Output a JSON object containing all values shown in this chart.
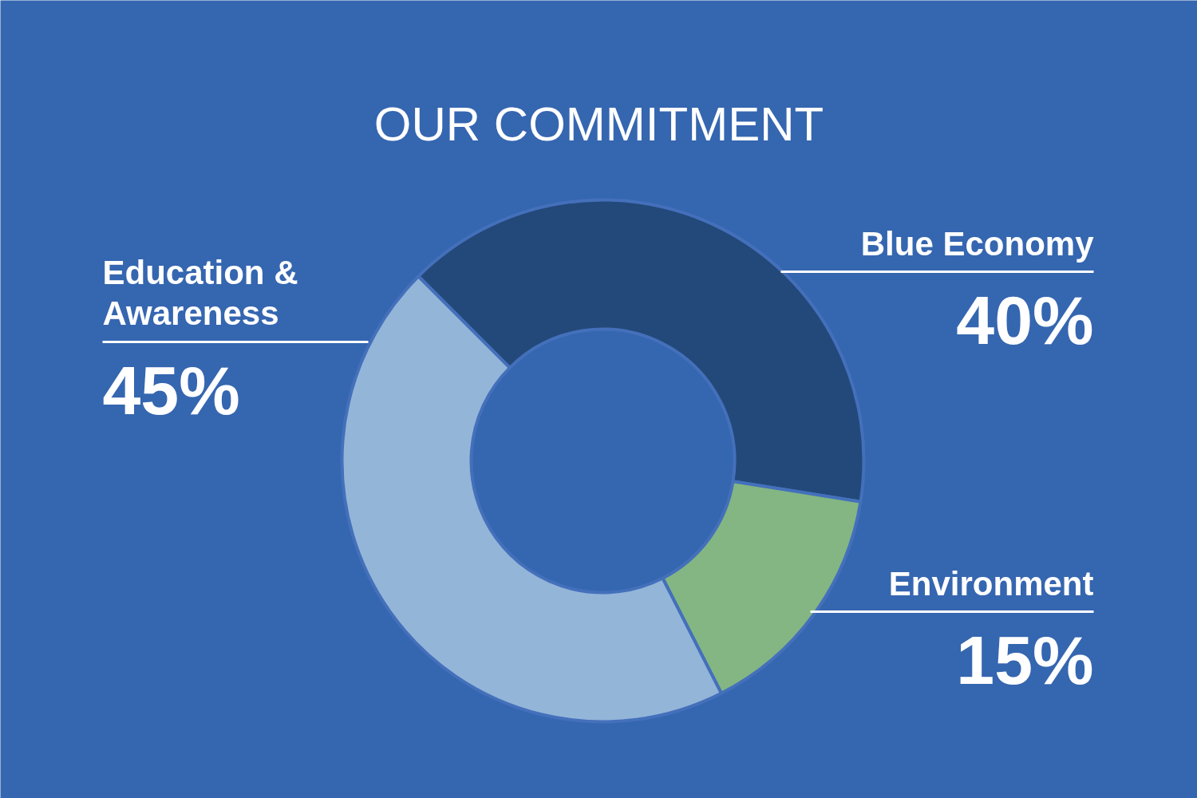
{
  "chart_data": {
    "type": "donut",
    "title": "OUR COMMITMENT",
    "categories": [
      "Blue Economy",
      "Environment",
      "Education & Awareness"
    ],
    "values": [
      40,
      15,
      45
    ],
    "colors": [
      "#23497a",
      "#84b683",
      "#93b5d8"
    ],
    "value_labels": [
      "40%",
      "15%",
      "45%"
    ]
  }
}
